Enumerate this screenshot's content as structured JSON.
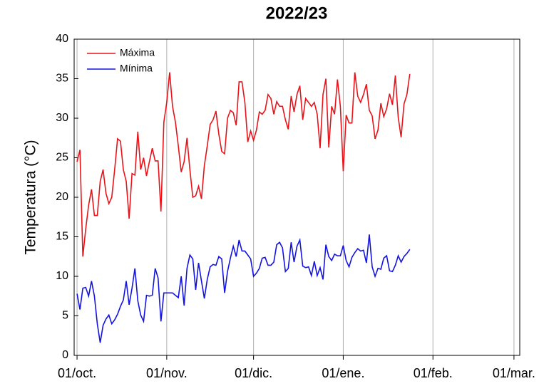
{
  "chart_data": {
    "type": "line",
    "title": "2022/23",
    "y_label": "Temperatura (°C)",
    "x": [
      0,
      1,
      2,
      3,
      4,
      5,
      6,
      7,
      8,
      9,
      10,
      11,
      12,
      13,
      14,
      15,
      16,
      17,
      18,
      19,
      20,
      21,
      22,
      23,
      24,
      25,
      26,
      27,
      28,
      29,
      30,
      31,
      32,
      33,
      34,
      35,
      36,
      37,
      38,
      39,
      40,
      41,
      42,
      43,
      44,
      45,
      46,
      47,
      48,
      49,
      50,
      51,
      52,
      53,
      54,
      55,
      56,
      57,
      58,
      59,
      60,
      61,
      62,
      63,
      64,
      65,
      66,
      67,
      68,
      69,
      70,
      71,
      72,
      73,
      74,
      75,
      76,
      77,
      78,
      79,
      80,
      81,
      82,
      83,
      84,
      85,
      86,
      87,
      88,
      89,
      90,
      91,
      92,
      93,
      94,
      95,
      96,
      97,
      98,
      99,
      100,
      101,
      102,
      103,
      104,
      105,
      106,
      107,
      108,
      109,
      110,
      111,
      112,
      113,
      114,
      115
    ],
    "series": [
      {
        "name": "Máxima",
        "color": "#e8141a",
        "values": [
          24.5,
          26,
          12.5,
          16,
          19,
          21,
          17.7,
          17.7,
          22,
          23.5,
          20.5,
          19.2,
          20,
          23.5,
          27.4,
          27.1,
          23.5,
          22,
          17.3,
          23,
          22.8,
          28.3,
          23.5,
          25,
          22.7,
          24.5,
          26.2,
          24.6,
          24.6,
          18.2,
          29.5,
          32,
          35.8,
          31.5,
          29.5,
          26.5,
          23.2,
          24.5,
          27.5,
          23.5,
          20,
          20.2,
          21.4,
          19.8,
          24,
          26.5,
          29.2,
          29.8,
          30.9,
          28,
          25.8,
          25.5,
          30,
          31,
          30.7,
          29.1,
          34.6,
          34.6,
          32,
          27,
          28.4,
          27.2,
          28.5,
          30.8,
          30.5,
          31,
          33,
          32.5,
          30.5,
          32.1,
          31.5,
          31.5,
          29.8,
          28.6,
          32.8,
          30.8,
          33,
          34.1,
          29.8,
          32.5,
          32,
          31.5,
          32,
          30.5,
          26.2,
          33,
          35,
          26.3,
          31.5,
          30.5,
          34.9,
          31.5,
          23.3,
          30.4,
          29.4,
          29.4,
          35.8,
          32.8,
          32,
          33,
          34.3,
          31,
          30.3,
          27.4,
          28.5,
          31.9,
          30.2,
          31.2,
          33.1,
          31.7,
          35.4,
          30.1,
          27.6,
          31.8,
          33,
          35.6
        ]
      },
      {
        "name": "Mínima",
        "color": "#1414e0",
        "values": [
          7.8,
          5.8,
          8.5,
          8.6,
          7.5,
          9.4,
          7.5,
          4,
          1.6,
          3.8,
          4.6,
          5.1,
          4,
          4.5,
          5.2,
          6.2,
          7,
          9.4,
          6.4,
          8.5,
          11,
          6.9,
          5.1,
          4.3,
          7.6,
          7.5,
          7.6,
          11,
          9.8,
          4.3,
          7.9,
          7.9,
          7.9,
          7.9,
          7.6,
          7.3,
          10,
          6.3,
          11,
          12.7,
          12.2,
          8.3,
          11.7,
          9.4,
          7.2,
          9.6,
          11.2,
          11.5,
          11.4,
          12.5,
          12.2,
          7.9,
          10.6,
          12.3,
          13.8,
          12.5,
          14.6,
          13.2,
          13.2,
          12.7,
          12.2,
          10,
          10.4,
          11,
          12.3,
          12.4,
          11.4,
          11.4,
          11.8,
          14,
          14.3,
          13.6,
          10.6,
          11,
          14.3,
          11.8,
          13.8,
          14.6,
          11.3,
          11.1,
          11.2,
          10.1,
          11.9,
          10.1,
          11.1,
          9.6,
          14,
          12.5,
          12,
          12.8,
          12.6,
          12.6,
          13.9,
          12,
          11.2,
          12.4,
          13,
          13.5,
          13.2,
          13.3,
          11.7,
          15.3,
          11.2,
          10,
          11,
          10.9,
          12.3,
          12.6,
          10.7,
          10.6,
          11.4,
          12.6,
          11.8,
          12.5,
          12.9,
          13.4
        ]
      }
    ],
    "xlim": [
      -1,
      153
    ],
    "xticks": [
      {
        "value": 0,
        "label": "01/oct."
      },
      {
        "value": 31,
        "label": "01/nov."
      },
      {
        "value": 61,
        "label": "01/dic."
      },
      {
        "value": 92,
        "label": "01/ene."
      },
      {
        "value": 123,
        "label": "01/feb."
      },
      {
        "value": 151,
        "label": "01/mar."
      }
    ],
    "ylim": [
      0,
      40
    ],
    "yticks": [
      0,
      5,
      10,
      15,
      20,
      25,
      30,
      35,
      40
    ],
    "grid": "x",
    "legend": "upper left"
  }
}
